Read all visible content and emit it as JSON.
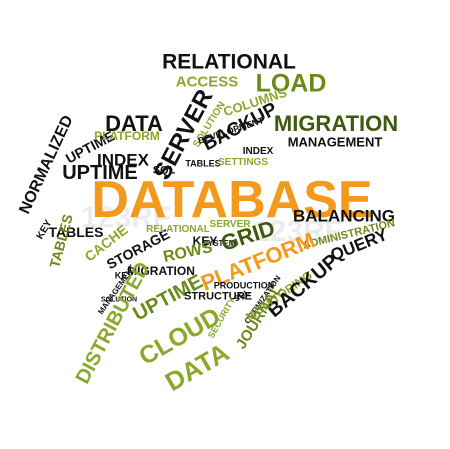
{
  "palette": {
    "orange": "#f39a1e",
    "olive": "#6c8a1a",
    "olive_light": "#8aa82a",
    "green_dark": "#3d5a0e",
    "black": "#111111"
  },
  "watermark": "123RF",
  "words": [
    {
      "id": "w01",
      "text": "RELATIONAL",
      "color": "black"
    },
    {
      "id": "w02",
      "text": "ACCESS",
      "color": "olive_light"
    },
    {
      "id": "w03",
      "text": "LOAD",
      "color": "olive"
    },
    {
      "id": "w04",
      "text": "COLUMNS",
      "color": "olive_light"
    },
    {
      "id": "w05",
      "text": "DATA",
      "color": "black"
    },
    {
      "id": "w06",
      "text": "SERVER",
      "color": "black"
    },
    {
      "id": "w07",
      "text": "SOLUTION",
      "color": "olive_light"
    },
    {
      "id": "w08",
      "text": "DEVELOPMENT",
      "color": "black"
    },
    {
      "id": "w09",
      "text": "UPTIME",
      "color": "black"
    },
    {
      "id": "w10",
      "text": "PLATFORM",
      "color": "olive_light"
    },
    {
      "id": "w11",
      "text": "INDEX",
      "color": "black"
    },
    {
      "id": "w12",
      "text": "SQL",
      "color": "black"
    },
    {
      "id": "w13",
      "text": "BACKUP",
      "color": "black"
    },
    {
      "id": "w14",
      "text": "MIGRATION",
      "color": "green_dark"
    },
    {
      "id": "w15",
      "text": "MANAGEMENT",
      "color": "black"
    },
    {
      "id": "w16",
      "text": "INDEX",
      "color": "black"
    },
    {
      "id": "w17",
      "text": "TABLES",
      "color": "black"
    },
    {
      "id": "w18",
      "text": "SETTINGS",
      "color": "olive_light"
    },
    {
      "id": "w19",
      "text": "NORMALIZED",
      "color": "black"
    },
    {
      "id": "w20",
      "text": "UPTIME",
      "color": "black"
    },
    {
      "id": "w21",
      "text": "DATABASE",
      "color": "orange"
    },
    {
      "id": "w22",
      "text": "TABLES",
      "color": "black"
    },
    {
      "id": "w23",
      "text": "KEY",
      "color": "black"
    },
    {
      "id": "w24",
      "text": "TABLES",
      "color": "olive"
    },
    {
      "id": "w25",
      "text": "CACHE",
      "color": "olive_light"
    },
    {
      "id": "w26",
      "text": "STORAGE",
      "color": "black"
    },
    {
      "id": "w27",
      "text": "RELATIONAL",
      "color": "olive_light"
    },
    {
      "id": "w28",
      "text": "SERVER",
      "color": "olive_light"
    },
    {
      "id": "w29",
      "text": "KEY",
      "color": "black"
    },
    {
      "id": "w30",
      "text": "SYSTEM",
      "color": "black"
    },
    {
      "id": "w31",
      "text": "GRID",
      "color": "green_dark"
    },
    {
      "id": "w32",
      "text": "BALANCING",
      "color": "black"
    },
    {
      "id": "w33",
      "text": "ADMINISTRATION",
      "color": "olive"
    },
    {
      "id": "w34",
      "text": "QUERY",
      "color": "black"
    },
    {
      "id": "w35",
      "text": "ROWS",
      "color": "olive"
    },
    {
      "id": "w36",
      "text": "PLATFORM",
      "color": "orange"
    },
    {
      "id": "w37",
      "text": "MIGRATION",
      "color": "black"
    },
    {
      "id": "w38",
      "text": "KEY",
      "color": "black"
    },
    {
      "id": "w39",
      "text": "MANAGEMENT",
      "color": "black"
    },
    {
      "id": "w40",
      "text": "SOLUTION",
      "color": "black"
    },
    {
      "id": "w41",
      "text": "DISTRIBUTED",
      "color": "olive_light"
    },
    {
      "id": "w42",
      "text": "UPTIME",
      "color": "olive"
    },
    {
      "id": "w43",
      "text": "STRUCTURE",
      "color": "black"
    },
    {
      "id": "w44",
      "text": "PRODUCTION",
      "color": "black"
    },
    {
      "id": "w45",
      "text": "SQL",
      "color": "black"
    },
    {
      "id": "w46",
      "text": "OPTIMIZATION",
      "color": "black"
    },
    {
      "id": "w47",
      "text": "MONITORING",
      "color": "olive_light"
    },
    {
      "id": "w48",
      "text": "BACKUP",
      "color": "black"
    },
    {
      "id": "w49",
      "text": "SECURITY",
      "color": "olive_light"
    },
    {
      "id": "w50",
      "text": "JOURNAL",
      "color": "olive"
    },
    {
      "id": "w51",
      "text": "CLOUD",
      "color": "olive_light"
    },
    {
      "id": "w52",
      "text": "DATA",
      "color": "olive_light"
    }
  ]
}
